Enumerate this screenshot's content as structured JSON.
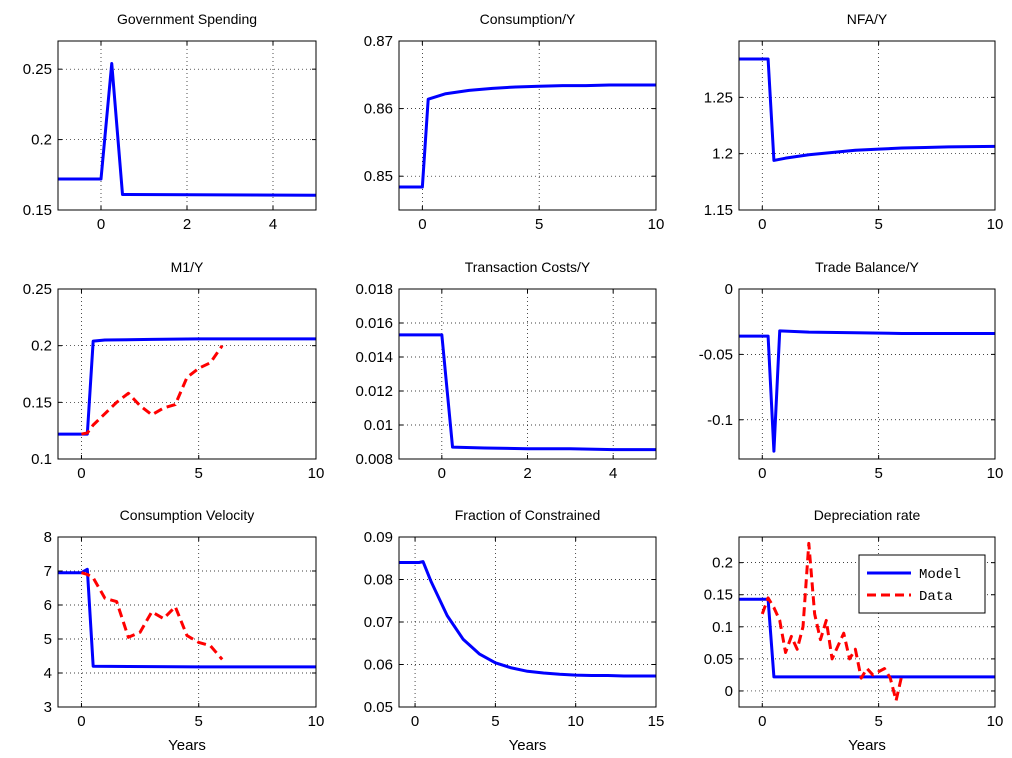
{
  "figure": {
    "colors": {
      "model": "#0000ff",
      "data": "#ff0000",
      "axes": "#000000",
      "background": "#ffffff"
    }
  },
  "chart_data": [
    {
      "type": "line",
      "title": "Government Spending",
      "xlabel": "",
      "xlim": [
        -1,
        5
      ],
      "ylim": [
        0.15,
        0.27
      ],
      "xticks": [
        0,
        2,
        4
      ],
      "xtick_labels": [
        "0",
        "2",
        "4"
      ],
      "yticks": [
        0.15,
        0.2,
        0.25
      ],
      "ytick_labels": [
        "0.15",
        "0.2",
        "0.25"
      ],
      "grid": true,
      "series": [
        {
          "style": "model",
          "x": [
            -1,
            0,
            0.25,
            0.5,
            5
          ],
          "y": [
            0.172,
            0.172,
            0.254,
            0.161,
            0.1605
          ]
        }
      ]
    },
    {
      "type": "line",
      "title": "Consumption/Y",
      "xlabel": "",
      "xlim": [
        -1,
        10
      ],
      "ylim": [
        0.845,
        0.87
      ],
      "xticks": [
        0,
        5,
        10
      ],
      "xtick_labels": [
        "0",
        "5",
        "10"
      ],
      "yticks": [
        0.85,
        0.86,
        0.87
      ],
      "ytick_labels": [
        "0.85",
        "0.86",
        "0.87"
      ],
      "grid": true,
      "series": [
        {
          "style": "model",
          "x": [
            -1,
            0,
            0.25,
            1,
            2,
            3,
            4,
            5,
            6,
            7,
            8,
            10
          ],
          "y": [
            0.8484,
            0.8484,
            0.8614,
            0.8622,
            0.8627,
            0.863,
            0.8632,
            0.8633,
            0.8634,
            0.8634,
            0.8635,
            0.8635
          ]
        }
      ]
    },
    {
      "type": "line",
      "title": "NFA/Y",
      "xlabel": "",
      "xlim": [
        -1,
        10
      ],
      "ylim": [
        1.15,
        1.3
      ],
      "xticks": [
        0,
        5,
        10
      ],
      "xtick_labels": [
        "0",
        "5",
        "10"
      ],
      "yticks": [
        1.15,
        1.2,
        1.25
      ],
      "ytick_labels": [
        "1.15",
        "1.2",
        "1.25"
      ],
      "grid": true,
      "series": [
        {
          "style": "model",
          "x": [
            -1,
            0.25,
            0.5,
            1,
            2,
            3,
            4,
            5,
            6,
            7,
            8,
            10
          ],
          "y": [
            1.284,
            1.284,
            1.194,
            1.196,
            1.199,
            1.201,
            1.203,
            1.204,
            1.205,
            1.2055,
            1.206,
            1.2065
          ]
        }
      ]
    },
    {
      "type": "line",
      "title": "M1/Y",
      "xlabel": "",
      "xlim": [
        -1,
        10
      ],
      "ylim": [
        0.1,
        0.25
      ],
      "xticks": [
        0,
        5,
        10
      ],
      "xtick_labels": [
        "0",
        "5",
        "10"
      ],
      "yticks": [
        0.1,
        0.15,
        0.2,
        0.25
      ],
      "ytick_labels": [
        "0.1",
        "0.15",
        "0.2",
        "0.25"
      ],
      "grid": true,
      "series": [
        {
          "style": "model",
          "x": [
            -1,
            0.25,
            0.5,
            1,
            3,
            5,
            10
          ],
          "y": [
            0.122,
            0.122,
            0.204,
            0.205,
            0.2055,
            0.206,
            0.206
          ]
        },
        {
          "style": "data",
          "x": [
            0,
            0.25,
            0.5,
            1,
            1.5,
            2,
            2.5,
            3,
            3.5,
            4,
            4.5,
            5,
            5.5,
            6
          ],
          "y": [
            0.122,
            0.123,
            0.13,
            0.14,
            0.15,
            0.158,
            0.147,
            0.139,
            0.145,
            0.148,
            0.172,
            0.18,
            0.185,
            0.2
          ]
        }
      ]
    },
    {
      "type": "line",
      "title": "Transaction Costs/Y",
      "xlabel": "",
      "xlim": [
        -1,
        5
      ],
      "ylim": [
        0.008,
        0.018
      ],
      "xticks": [
        0,
        2,
        4
      ],
      "xtick_labels": [
        "0",
        "2",
        "4"
      ],
      "yticks": [
        0.008,
        0.01,
        0.012,
        0.014,
        0.016,
        0.018
      ],
      "ytick_labels": [
        "0.008",
        "0.01",
        "0.012",
        "0.014",
        "0.016",
        "0.018"
      ],
      "grid": true,
      "series": [
        {
          "style": "model",
          "x": [
            -1,
            0,
            0.25,
            1,
            2,
            3,
            4,
            5
          ],
          "y": [
            0.0153,
            0.0153,
            0.0087,
            0.00865,
            0.0086,
            0.0086,
            0.00855,
            0.00855
          ]
        }
      ]
    },
    {
      "type": "line",
      "title": "Trade Balance/Y",
      "xlabel": "",
      "xlim": [
        -1,
        10
      ],
      "ylim": [
        -0.13,
        0
      ],
      "xticks": [
        0,
        5,
        10
      ],
      "xtick_labels": [
        "0",
        "5",
        "10"
      ],
      "yticks": [
        -0.1,
        -0.05,
        0
      ],
      "ytick_labels": [
        "-0.1",
        "-0.05",
        "0"
      ],
      "grid": true,
      "series": [
        {
          "style": "model",
          "x": [
            -1,
            0.25,
            0.5,
            0.75,
            2,
            4,
            6,
            10
          ],
          "y": [
            -0.036,
            -0.036,
            -0.124,
            -0.032,
            -0.033,
            -0.0335,
            -0.034,
            -0.034
          ]
        }
      ]
    },
    {
      "type": "line",
      "title": "Consumption Velocity",
      "xlabel": "Years",
      "xlim": [
        -1,
        10
      ],
      "ylim": [
        3,
        8
      ],
      "xticks": [
        0,
        5,
        10
      ],
      "xtick_labels": [
        "0",
        "5",
        "10"
      ],
      "yticks": [
        3,
        4,
        5,
        6,
        7,
        8
      ],
      "ytick_labels": [
        "3",
        "4",
        "5",
        "6",
        "7",
        "8"
      ],
      "grid": true,
      "series": [
        {
          "style": "model",
          "x": [
            -1,
            0,
            0.25,
            0.5,
            2,
            5,
            10
          ],
          "y": [
            6.95,
            6.95,
            7.05,
            4.2,
            4.19,
            4.18,
            4.18
          ]
        },
        {
          "style": "data",
          "x": [
            0,
            0.25,
            0.5,
            1,
            1.5,
            2,
            2.5,
            3,
            3.5,
            4,
            4.5,
            5,
            5.5,
            6
          ],
          "y": [
            6.95,
            6.9,
            6.8,
            6.2,
            6.1,
            5.05,
            5.2,
            5.8,
            5.6,
            5.95,
            5.1,
            4.9,
            4.8,
            4.4
          ]
        }
      ]
    },
    {
      "type": "line",
      "title": "Fraction of Constrained",
      "xlabel": "Years",
      "xlim": [
        -1,
        15
      ],
      "ylim": [
        0.05,
        0.09
      ],
      "xticks": [
        0,
        5,
        10,
        15
      ],
      "xtick_labels": [
        "0",
        "5",
        "10",
        "15"
      ],
      "yticks": [
        0.05,
        0.06,
        0.07,
        0.08,
        0.09
      ],
      "ytick_labels": [
        "0.05",
        "0.06",
        "0.07",
        "0.08",
        "0.09"
      ],
      "grid": true,
      "series": [
        {
          "style": "model",
          "x": [
            -1,
            0.25,
            0.5,
            1,
            2,
            3,
            4,
            5,
            6,
            7,
            8,
            9,
            10,
            11,
            12,
            13,
            14,
            15
          ],
          "y": [
            0.084,
            0.084,
            0.0842,
            0.0795,
            0.0715,
            0.0659,
            0.0625,
            0.0604,
            0.0592,
            0.0584,
            0.058,
            0.0577,
            0.0575,
            0.0574,
            0.0574,
            0.0573,
            0.0573,
            0.0573
          ]
        }
      ]
    },
    {
      "type": "line",
      "title": "Depreciation rate",
      "xlabel": "Years",
      "xlim": [
        -1,
        10
      ],
      "ylim": [
        -0.025,
        0.24
      ],
      "xticks": [
        0,
        5,
        10
      ],
      "xtick_labels": [
        "0",
        "5",
        "10"
      ],
      "yticks": [
        0,
        0.05,
        0.1,
        0.15,
        0.2
      ],
      "ytick_labels": [
        "0",
        "0.05",
        "0.1",
        "0.15",
        "0.2"
      ],
      "grid": true,
      "legend": {
        "position": "top-right",
        "entries": [
          {
            "label": "Model",
            "style": "model"
          },
          {
            "label": "Data",
            "style": "data"
          }
        ]
      },
      "series": [
        {
          "style": "model",
          "name": "Model",
          "x": [
            -1,
            0.25,
            0.5,
            1,
            5,
            10
          ],
          "y": [
            0.143,
            0.143,
            0.022,
            0.022,
            0.022,
            0.022
          ]
        },
        {
          "style": "data",
          "name": "Data",
          "x": [
            0,
            0.25,
            0.5,
            0.75,
            1,
            1.25,
            1.5,
            1.75,
            2,
            2.25,
            2.5,
            2.75,
            3,
            3.25,
            3.5,
            3.75,
            4,
            4.25,
            4.5,
            4.75,
            5,
            5.25,
            5.5,
            5.75,
            6
          ],
          "y": [
            0.12,
            0.145,
            0.13,
            0.11,
            0.06,
            0.085,
            0.065,
            0.1,
            0.23,
            0.12,
            0.08,
            0.11,
            0.05,
            0.07,
            0.09,
            0.05,
            0.065,
            0.02,
            0.035,
            0.025,
            0.03,
            0.035,
            0.02,
            -0.015,
            0.025
          ]
        }
      ]
    }
  ]
}
